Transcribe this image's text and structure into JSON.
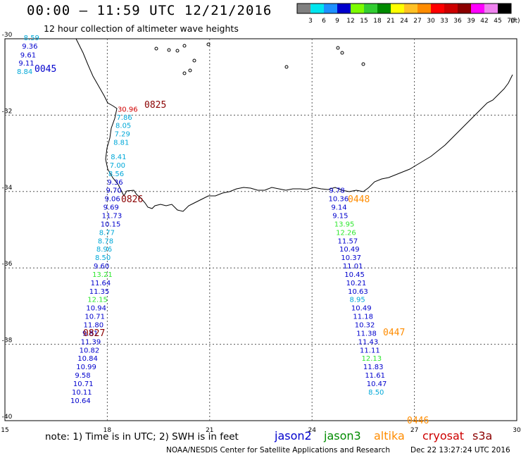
{
  "header": {
    "title": "00:00 – 11:59 UTC 12/21/2016",
    "subtitle": "12 hour collection of altimeter wave heights"
  },
  "legend": {
    "unit": "(ft)",
    "bins": [
      {
        "label": "3",
        "color": "#808080"
      },
      {
        "label": "6",
        "color": "#00e5ee"
      },
      {
        "label": "9",
        "color": "#1e90ff"
      },
      {
        "label": "12",
        "color": "#0000cd"
      },
      {
        "label": "15",
        "color": "#7cfc00"
      },
      {
        "label": "18",
        "color": "#32cd32"
      },
      {
        "label": "21",
        "color": "#008b00"
      },
      {
        "label": "24",
        "color": "#ffff00"
      },
      {
        "label": "27",
        "color": "#ffc125"
      },
      {
        "label": "30",
        "color": "#ff8c00"
      },
      {
        "label": "33",
        "color": "#ff0000"
      },
      {
        "label": "36",
        "color": "#cd0000"
      },
      {
        "label": "39",
        "color": "#8b0000"
      },
      {
        "label": "42",
        "color": "#ff00ff"
      },
      {
        "label": "45",
        "color": "#ee82ee"
      },
      {
        "label": "70",
        "color": "#000000"
      }
    ]
  },
  "axes": {
    "x_ticks": [
      "15",
      "18",
      "21",
      "24",
      "27",
      "30"
    ],
    "y_ticks": [
      "-30",
      "-32",
      "-34",
      "-36",
      "-38",
      "-40"
    ]
  },
  "satellites": [
    {
      "name": "jason2",
      "color": "#0000cd"
    },
    {
      "name": "jason3",
      "color": "#008b00"
    },
    {
      "name": "altika",
      "color": "#ff8c00"
    },
    {
      "name": "cryosat",
      "color": "#cd0000"
    },
    {
      "name": "s3a",
      "color": "#8b0000"
    }
  ],
  "colors": {
    "blue": "#0000cd",
    "lightblue": "#00a8d8",
    "green": "#2ee82e",
    "red": "#d00000",
    "darkred": "#8b0000",
    "orange": "#ff8c00",
    "grid": "#555555"
  },
  "tracks": [
    {
      "time": "0045",
      "time_color": "blue",
      "observations": [
        {
          "value": "8.59",
          "color": "lightblue",
          "lon": 15.55,
          "lat": -29.98
        },
        {
          "value": "9.36",
          "color": "blue",
          "lon": 15.5,
          "lat": -30.2
        },
        {
          "value": "9.61",
          "color": "blue",
          "lon": 15.45,
          "lat": -30.43
        },
        {
          "value": "9.11",
          "color": "blue",
          "lon": 15.4,
          "lat": -30.65
        },
        {
          "value": "8.84",
          "color": "lightblue",
          "lon": 15.35,
          "lat": -30.87
        }
      ]
    },
    {
      "time": "0825",
      "time_color": "darkred",
      "observations": [
        {
          "value": "30.96",
          "color": "red",
          "lon": 18.3,
          "lat": -31.85
        },
        {
          "value": "7.86",
          "color": "lightblue",
          "lon": 18.27,
          "lat": -32.07
        },
        {
          "value": "8.05",
          "color": "lightblue",
          "lon": 18.24,
          "lat": -32.28
        },
        {
          "value": "7.29",
          "color": "lightblue",
          "lon": 18.21,
          "lat": -32.5
        },
        {
          "value": "8.81",
          "color": "lightblue",
          "lon": 18.18,
          "lat": -32.72
        },
        {
          "value": "8.41",
          "color": "lightblue",
          "lon": 18.1,
          "lat": -33.1
        },
        {
          "value": "7.00",
          "color": "lightblue",
          "lon": 18.07,
          "lat": -33.32
        },
        {
          "value": "8.56",
          "color": "lightblue",
          "lon": 18.03,
          "lat": -33.54
        },
        {
          "value": "9.36",
          "color": "blue",
          "lon": 18.0,
          "lat": -33.76
        },
        {
          "value": "9.70",
          "color": "blue",
          "lon": 17.96,
          "lat": -33.98
        }
      ]
    },
    {
      "time": "0826",
      "time_color": "darkred",
      "observations": [
        {
          "value": "9.06",
          "color": "blue",
          "lon": 17.92,
          "lat": -34.2
        },
        {
          "value": "9.69",
          "color": "blue",
          "lon": 17.88,
          "lat": -34.42
        },
        {
          "value": "11.73",
          "color": "blue",
          "lon": 17.84,
          "lat": -34.64
        },
        {
          "value": "10.15",
          "color": "blue",
          "lon": 17.8,
          "lat": -34.86
        },
        {
          "value": "8.77",
          "color": "lightblue",
          "lon": 17.76,
          "lat": -35.08
        },
        {
          "value": "8.78",
          "color": "lightblue",
          "lon": 17.72,
          "lat": -35.3
        },
        {
          "value": "8.96",
          "color": "lightblue",
          "lon": 17.68,
          "lat": -35.52
        },
        {
          "value": "8.50",
          "color": "lightblue",
          "lon": 17.64,
          "lat": -35.74
        },
        {
          "value": "9.60",
          "color": "blue",
          "lon": 17.6,
          "lat": -35.96
        },
        {
          "value": "13.21",
          "color": "green",
          "lon": 17.56,
          "lat": -36.18
        },
        {
          "value": "11.64",
          "color": "blue",
          "lon": 17.51,
          "lat": -36.4
        },
        {
          "value": "11.35",
          "color": "blue",
          "lon": 17.47,
          "lat": -36.62
        },
        {
          "value": "12.15",
          "color": "green",
          "lon": 17.42,
          "lat": -36.84
        },
        {
          "value": "10.94",
          "color": "blue",
          "lon": 17.38,
          "lat": -37.06
        },
        {
          "value": "10.71",
          "color": "blue",
          "lon": 17.34,
          "lat": -37.28
        },
        {
          "value": "11.80",
          "color": "blue",
          "lon": 17.3,
          "lat": -37.5
        }
      ]
    },
    {
      "time": "0827",
      "time_color": "darkred",
      "observations": [
        {
          "value": "9.81",
          "color": "blue",
          "lon": 17.27,
          "lat": -37.72
        },
        {
          "value": "11.39",
          "color": "blue",
          "lon": 17.22,
          "lat": -37.94
        },
        {
          "value": "10.82",
          "color": "blue",
          "lon": 17.18,
          "lat": -38.16
        },
        {
          "value": "10.84",
          "color": "blue",
          "lon": 17.13,
          "lat": -38.38
        },
        {
          "value": "10.99",
          "color": "blue",
          "lon": 17.09,
          "lat": -38.6
        },
        {
          "value": "9.58",
          "color": "blue",
          "lon": 17.05,
          "lat": -38.82
        },
        {
          "value": "10.71",
          "color": "blue",
          "lon": 17.0,
          "lat": -39.04
        },
        {
          "value": "10.11",
          "color": "blue",
          "lon": 16.96,
          "lat": -39.26
        },
        {
          "value": "10.64",
          "color": "blue",
          "lon": 16.92,
          "lat": -39.48
        }
      ]
    },
    {
      "time": "0448",
      "time_color": "orange",
      "observations": [
        {
          "value": "9.78",
          "color": "blue",
          "lon": 24.5,
          "lat": -33.98
        },
        {
          "value": "10.36",
          "color": "blue",
          "lon": 24.48,
          "lat": -34.2
        },
        {
          "value": "9.14",
          "color": "blue",
          "lon": 24.56,
          "lat": -34.42
        },
        {
          "value": "9.15",
          "color": "blue",
          "lon": 24.6,
          "lat": -34.64
        },
        {
          "value": "13.95",
          "color": "green",
          "lon": 24.65,
          "lat": -34.86
        },
        {
          "value": "12.26",
          "color": "green",
          "lon": 24.7,
          "lat": -35.08
        },
        {
          "value": "11.57",
          "color": "blue",
          "lon": 24.75,
          "lat": -35.3
        },
        {
          "value": "10.49",
          "color": "blue",
          "lon": 24.8,
          "lat": -35.52
        },
        {
          "value": "10.37",
          "color": "blue",
          "lon": 24.85,
          "lat": -35.74
        },
        {
          "value": "11.01",
          "color": "blue",
          "lon": 24.9,
          "lat": -35.96
        },
        {
          "value": "10.45",
          "color": "blue",
          "lon": 24.95,
          "lat": -36.18
        },
        {
          "value": "10.21",
          "color": "blue",
          "lon": 25.0,
          "lat": -36.4
        },
        {
          "value": "10.63",
          "color": "blue",
          "lon": 25.05,
          "lat": -36.62
        },
        {
          "value": "8.95",
          "color": "lightblue",
          "lon": 25.1,
          "lat": -36.84
        },
        {
          "value": "10.49",
          "color": "blue",
          "lon": 25.15,
          "lat": -37.06
        },
        {
          "value": "11.18",
          "color": "blue",
          "lon": 25.2,
          "lat": -37.28
        }
      ]
    },
    {
      "time": "0447",
      "time_color": "orange",
      "observations": [
        {
          "value": "10.32",
          "color": "blue",
          "lon": 25.25,
          "lat": -37.5
        },
        {
          "value": "11.38",
          "color": "blue",
          "lon": 25.3,
          "lat": -37.72
        },
        {
          "value": "11.43",
          "color": "blue",
          "lon": 25.35,
          "lat": -37.94
        },
        {
          "value": "11.11",
          "color": "blue",
          "lon": 25.4,
          "lat": -38.16
        },
        {
          "value": "12.13",
          "color": "green",
          "lon": 25.45,
          "lat": -38.38
        },
        {
          "value": "11.83",
          "color": "blue",
          "lon": 25.5,
          "lat": -38.6
        },
        {
          "value": "11.61",
          "color": "blue",
          "lon": 25.55,
          "lat": -38.82
        },
        {
          "value": "10.47",
          "color": "blue",
          "lon": 25.6,
          "lat": -39.04
        },
        {
          "value": "8.50",
          "color": "lightblue",
          "lon": 25.65,
          "lat": -39.26
        }
      ]
    },
    {
      "time": "0446",
      "time_color": "orange",
      "observations": []
    }
  ],
  "note": "note: 1) Time is in UTC; 2) SWH is in feet",
  "footer": {
    "credit": "NOAA/NESDIS Center for Satellite Applications and Research",
    "timestamp": "Dec 22 13:27:24 UTC 2016"
  }
}
